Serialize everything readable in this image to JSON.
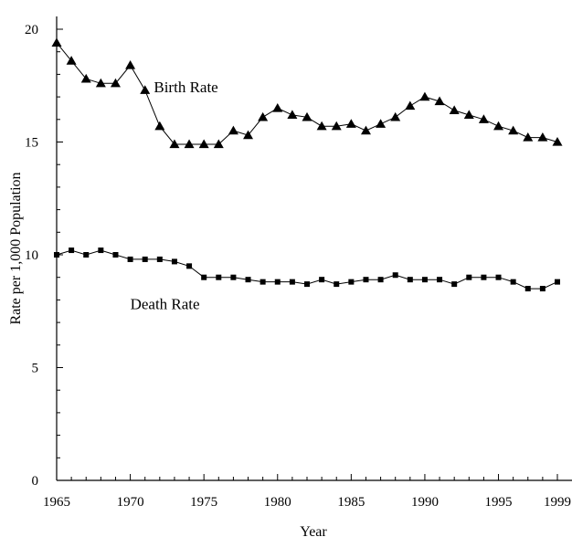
{
  "chart_data": {
    "type": "line",
    "title": "",
    "xlabel": "Year",
    "ylabel": "Rate per 1,000 Population",
    "xlim": [
      1965,
      1999
    ],
    "ylim": [
      0,
      20
    ],
    "grid": false,
    "x_ticks": [
      1965,
      1970,
      1975,
      1980,
      1985,
      1990,
      1995,
      1999
    ],
    "y_ticks": [
      0,
      5,
      10,
      15,
      20
    ],
    "x": [
      1965,
      1966,
      1967,
      1968,
      1969,
      1970,
      1971,
      1972,
      1973,
      1974,
      1975,
      1976,
      1977,
      1978,
      1979,
      1980,
      1981,
      1982,
      1983,
      1984,
      1985,
      1986,
      1987,
      1988,
      1989,
      1990,
      1991,
      1992,
      1993,
      1994,
      1995,
      1996,
      1997,
      1998,
      1999
    ],
    "series": [
      {
        "name": "Birth Rate",
        "marker": "triangle",
        "values": [
          19.4,
          18.6,
          17.8,
          17.6,
          17.6,
          18.4,
          17.3,
          15.7,
          14.9,
          14.9,
          14.9,
          14.9,
          15.5,
          15.3,
          16.1,
          16.5,
          16.2,
          16.1,
          15.7,
          15.7,
          15.8,
          15.5,
          15.8,
          16.1,
          16.6,
          17.0,
          16.8,
          16.4,
          16.2,
          16.0,
          15.7,
          15.5,
          15.2,
          15.2,
          15.0
        ],
        "label": "Birth Rate"
      },
      {
        "name": "Death Rate",
        "marker": "square",
        "values": [
          10.0,
          10.2,
          10.0,
          10.2,
          10.0,
          9.8,
          9.8,
          9.8,
          9.7,
          9.5,
          9.0,
          9.0,
          9.0,
          8.9,
          8.8,
          8.8,
          8.8,
          8.7,
          8.9,
          8.7,
          8.8,
          8.9,
          8.9,
          9.1,
          8.9,
          8.9,
          8.9,
          8.7,
          9.0,
          9.0,
          9.0,
          8.8,
          8.5,
          8.5,
          8.8
        ],
        "label": "Death Rate"
      }
    ]
  }
}
